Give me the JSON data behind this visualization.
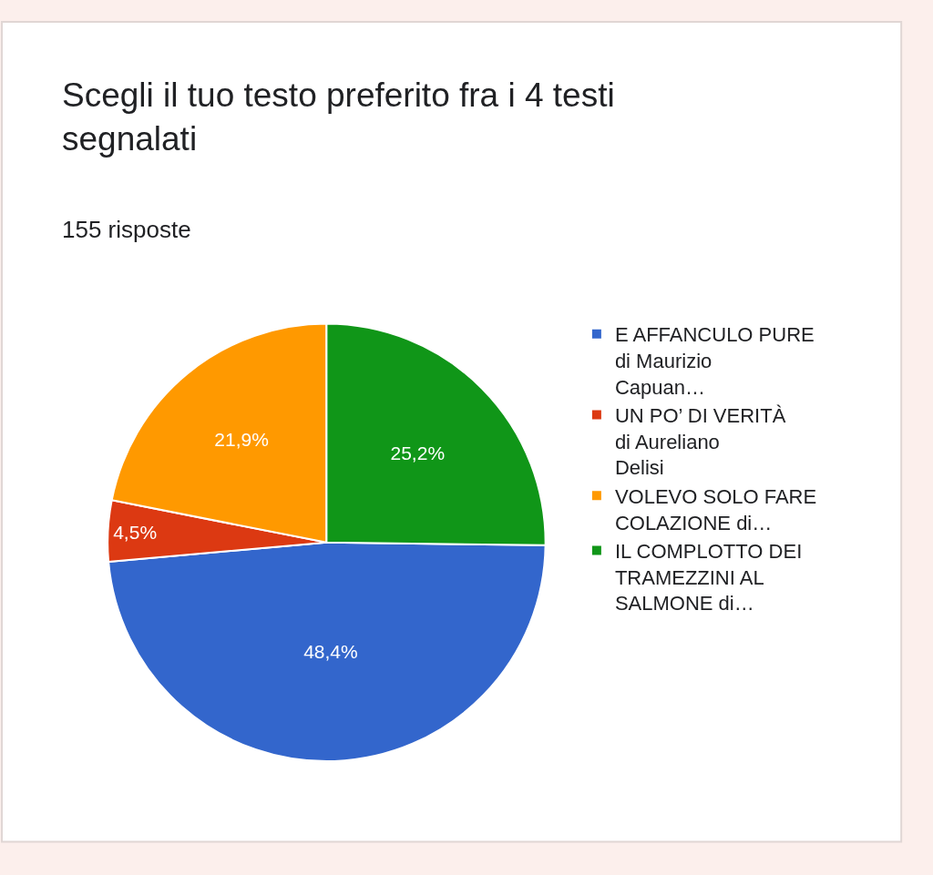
{
  "chart_data": {
    "type": "pie",
    "title": "Scegli il tuo testo preferito fra i 4 testi segnalati",
    "subtitle": "155 risposte",
    "categories": [
      "E AFFANCULO PURE di Maurizio Capuan…",
      "UN PO’ DI VERITÀ di Aureliano Delisi",
      "VOLEVO SOLO FARE COLAZIONE di…",
      "IL COMPLOTTO DEI TRAMEZZINI AL SALMONE di…"
    ],
    "values": [
      48.4,
      4.5,
      21.9,
      25.2
    ],
    "value_labels": [
      "48,4%",
      "4,5%",
      "21,9%",
      "25,2%"
    ],
    "colors": [
      "#3366cc",
      "#dc3912",
      "#ff9900",
      "#109618"
    ],
    "legend": "right"
  }
}
